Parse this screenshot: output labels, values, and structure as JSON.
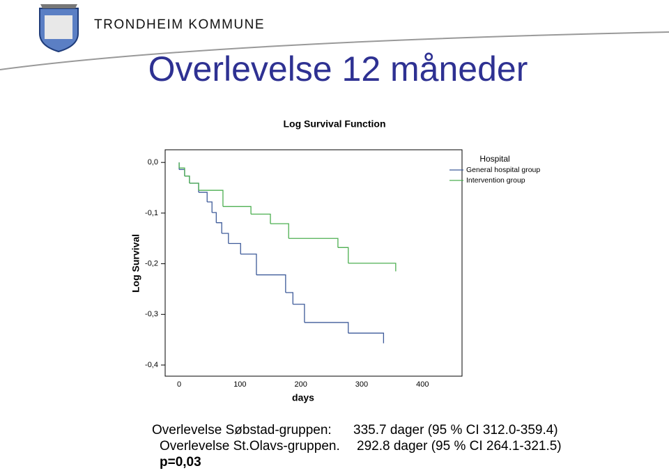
{
  "header": {
    "organization": "TRONDHEIM KOMMUNE",
    "title": "Overlevelse 12 måneder"
  },
  "chart_data": {
    "type": "step",
    "title": "Log Survival Function",
    "x_label": "days",
    "y_label": "Log Survival",
    "legend_title": "Hospital",
    "legend": "top-right",
    "xlim": [
      -23,
      465
    ],
    "ylim": [
      -0.422,
      0.025
    ],
    "xticks": [
      0,
      100,
      200,
      300,
      400
    ],
    "yticks": [
      {
        "value": 0,
        "label": "0,0"
      },
      {
        "value": -0.1,
        "label": "-0,1"
      },
      {
        "value": -0.2,
        "label": "-0,2"
      },
      {
        "value": -0.3,
        "label": "-0,3"
      },
      {
        "value": -0.4,
        "label": "-0,4"
      }
    ],
    "series": [
      {
        "name": "General hospital group",
        "color": "#3d5a99",
        "x": [
          0,
          0,
          9,
          17,
          32,
          46,
          54,
          61,
          70,
          81,
          101,
          127,
          175,
          187,
          206,
          278,
          336
        ],
        "values": [
          0,
          -0.014,
          -0.027,
          -0.041,
          -0.059,
          -0.078,
          -0.099,
          -0.119,
          -0.14,
          -0.16,
          -0.181,
          -0.222,
          -0.257,
          -0.28,
          -0.316,
          -0.337,
          -0.357
        ]
      },
      {
        "name": "Intervention group",
        "color": "#4caf50",
        "x": [
          0,
          0,
          9,
          17,
          32,
          72,
          118,
          150,
          180,
          261,
          278,
          356
        ],
        "values": [
          0,
          -0.011,
          -0.027,
          -0.041,
          -0.055,
          -0.087,
          -0.102,
          -0.121,
          -0.15,
          -0.168,
          -0.199,
          -0.215
        ]
      }
    ]
  },
  "results": [
    {
      "label": "Overlevelse Søbstad-gruppen:",
      "value": "335.7 dager (95 % CI 312.0-359.4)"
    },
    {
      "label": "Overlevelse St.Olavs-gruppen.",
      "value": "292.8 dager (95 % CI 264.1-321.5)"
    },
    {
      "label": "p=0,03"
    }
  ]
}
